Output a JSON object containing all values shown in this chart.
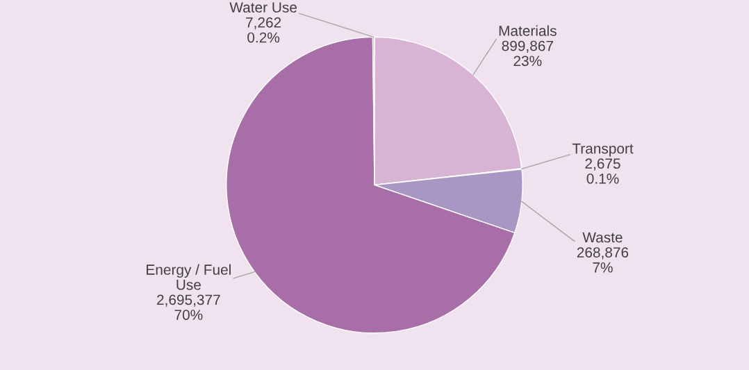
{
  "chart_data": {
    "type": "pie",
    "categories": [
      "Materials",
      "Transport",
      "Waste",
      "Energy / Fuel\nUse",
      "Water Use"
    ],
    "values": [
      899867,
      2675,
      268876,
      2695377,
      7262
    ],
    "value_labels": [
      "899,867\n23%",
      "2,675\n0.1%",
      "268,876\n7%",
      "2,695,377\n70%",
      "7,262\n0.2%"
    ],
    "colors": [
      "#d8b4d4",
      "#d8b4d4",
      "#a997c3",
      "#a86ea8",
      "#d8b4d4"
    ],
    "legend": false
  }
}
